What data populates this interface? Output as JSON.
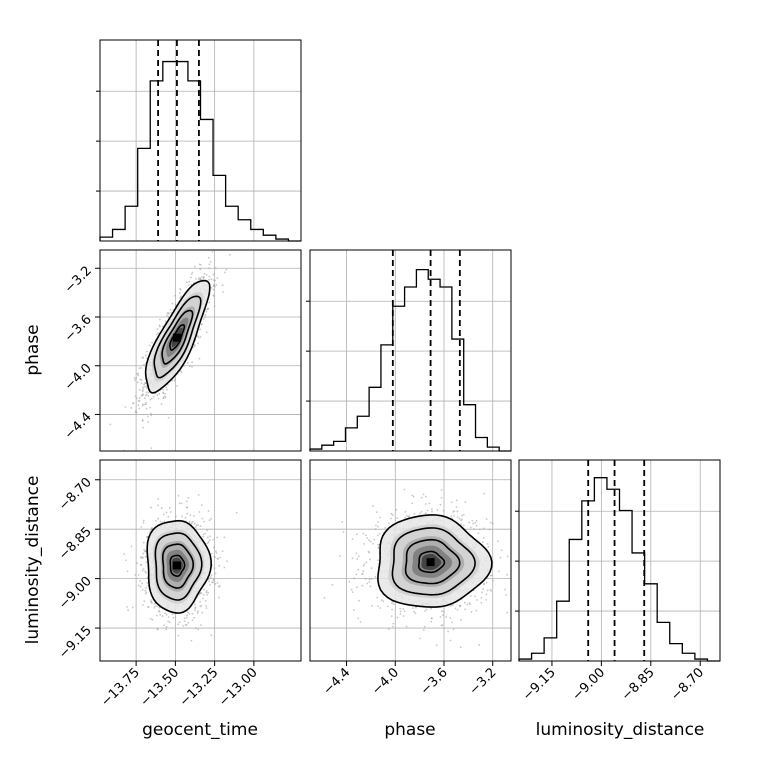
{
  "chart_data": {
    "type": "corner",
    "parameters": [
      "geocent_time",
      "phase",
      "luminosity_distance"
    ],
    "ranges": {
      "geocent_time": [
        -13.98,
        -12.7
      ],
      "phase": [
        -4.7,
        -3.05
      ],
      "luminosity_distance": [
        -9.25,
        -8.64
      ]
    },
    "ticks": {
      "geocent_time": [
        -13.75,
        -13.5,
        -13.25,
        -13.0
      ],
      "phase": [
        -4.4,
        -4.0,
        -3.6,
        -3.2
      ],
      "luminosity_distance": [
        -9.15,
        -9.0,
        -8.85,
        -8.7
      ]
    },
    "tick_labels": {
      "geocent_time": [
        "−13.75",
        "−13.50",
        "−13.25",
        "−13.00"
      ],
      "phase": [
        "−4.4",
        "−4.0",
        "−3.6",
        "−3.2"
      ],
      "luminosity_distance": [
        "−9.15",
        "−9.00",
        "−8.85",
        "−8.70"
      ]
    },
    "quantiles": {
      "geocent_time": [
        -13.61,
        -13.49,
        -13.35
      ],
      "phase": [
        -4.02,
        -3.71,
        -3.47
      ],
      "luminosity_distance": [
        -9.04,
        -8.96,
        -8.87
      ]
    },
    "histograms": {
      "geocent_time": [
        0.02,
        0.06,
        0.18,
        0.48,
        0.83,
        0.93,
        0.93,
        0.83,
        0.63,
        0.34,
        0.18,
        0.11,
        0.06,
        0.03,
        0.01,
        0.0
      ],
      "phase": [
        0.01,
        0.03,
        0.05,
        0.12,
        0.18,
        0.33,
        0.55,
        0.75,
        0.85,
        0.94,
        0.89,
        0.85,
        0.58,
        0.24,
        0.07,
        0.02,
        0.0
      ],
      "luminosity_distance": [
        0.01,
        0.04,
        0.12,
        0.31,
        0.63,
        0.83,
        0.95,
        0.89,
        0.78,
        0.56,
        0.4,
        0.2,
        0.09,
        0.04,
        0.01,
        0.0
      ]
    },
    "scatter_2d": [
      {
        "x": "geocent_time",
        "y": "phase",
        "x_mean": -13.49,
        "y_mean": -3.77,
        "x_sd": 0.1,
        "y_sd": 0.23,
        "correlation": 0.8
      },
      {
        "x": "geocent_time",
        "y": "luminosity_distance",
        "x_mean": -13.49,
        "y_mean": -8.96,
        "x_sd": 0.1,
        "y_sd": 0.07,
        "correlation": 0.0
      },
      {
        "x": "phase",
        "y": "luminosity_distance",
        "x_mean": -3.71,
        "y_mean": -8.95,
        "x_sd": 0.23,
        "y_sd": 0.07,
        "correlation": 0.0
      }
    ],
    "grid": true
  }
}
